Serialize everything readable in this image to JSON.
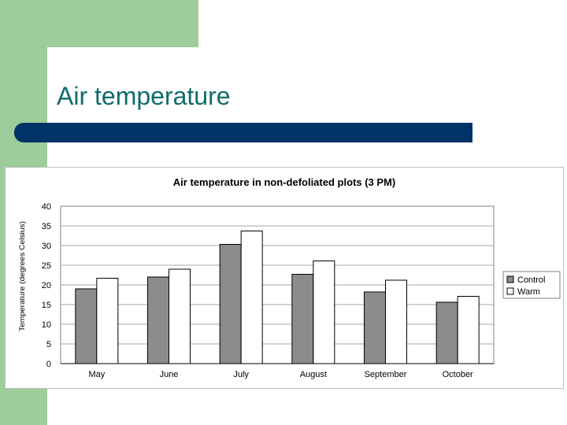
{
  "slide": {
    "title": "Air temperature",
    "colors": {
      "green": "#9ccd9a",
      "title_text": "#0f6b6b",
      "bar": "#003366"
    }
  },
  "chart_data": {
    "type": "bar",
    "title": "Air temperature in non-defoliated plots (3 PM)",
    "xlabel": "",
    "ylabel": "Temperature (degrees Celsius)",
    "categories": [
      "May",
      "June",
      "July",
      "August",
      "September",
      "October"
    ],
    "series": [
      {
        "name": "Control",
        "values": [
          19,
          22,
          30.3,
          22.7,
          18.2,
          15.6
        ],
        "color": "#8c8c8c"
      },
      {
        "name": "Warm",
        "values": [
          21.7,
          24,
          33.7,
          26.1,
          21.2,
          17.1
        ],
        "color": "#ffffff"
      }
    ],
    "ylim": [
      0,
      40
    ],
    "yticks": [
      0,
      5,
      10,
      15,
      20,
      25,
      30,
      35,
      40
    ],
    "grid": true,
    "legend": "right"
  }
}
